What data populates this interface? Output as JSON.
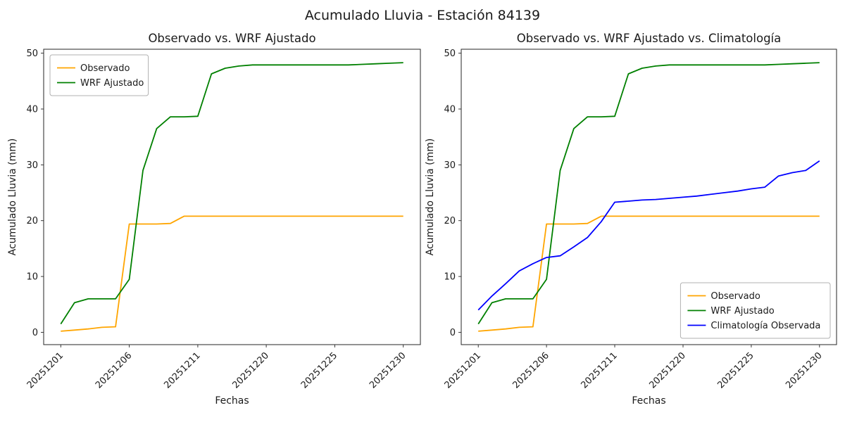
{
  "figure_title": "Acumulado Lluvia - Estación 84139",
  "chart_data": [
    {
      "type": "line",
      "title": "Observado vs. WRF Ajustado",
      "xlabel": "Fechas",
      "ylabel": "Acumulado Lluvia (mm)",
      "ylim": [
        0,
        50
      ],
      "yticks": [
        0,
        10,
        20,
        30,
        40,
        50
      ],
      "xtick_labels": [
        "20251201",
        "20251206",
        "20251211",
        "20251220",
        "20251225",
        "20251230"
      ],
      "xtick_indices": [
        0,
        5,
        10,
        15,
        20,
        25
      ],
      "n_points": 26,
      "grid": false,
      "legend_position": "upper-left",
      "series": [
        {
          "name": "Observado",
          "color": "#FFA500",
          "values": [
            0.2,
            0.4,
            0.6,
            0.9,
            1.0,
            19.4,
            19.4,
            19.4,
            19.5,
            20.8,
            20.8,
            20.8,
            20.8,
            20.8,
            20.8,
            20.8,
            20.8,
            20.8,
            20.8,
            20.8,
            20.8,
            20.8,
            20.8,
            20.8,
            20.8,
            20.8
          ]
        },
        {
          "name": "WRF Ajustado",
          "color": "#008000",
          "values": [
            1.5,
            5.3,
            6.0,
            6.0,
            6.0,
            9.5,
            29.0,
            36.5,
            38.6,
            38.6,
            38.7,
            46.3,
            47.3,
            47.7,
            47.9,
            47.9,
            47.9,
            47.9,
            47.9,
            47.9,
            47.9,
            47.9,
            48.0,
            48.1,
            48.2,
            48.3
          ]
        }
      ]
    },
    {
      "type": "line",
      "title": "Observado vs. WRF Ajustado vs. Climatología",
      "xlabel": "Fechas",
      "ylabel": "Acumulado Lluvia (mm)",
      "ylim": [
        0,
        50
      ],
      "yticks": [
        0,
        10,
        20,
        30,
        40,
        50
      ],
      "xtick_labels": [
        "20251201",
        "20251206",
        "20251211",
        "20251220",
        "20251225",
        "20251230"
      ],
      "xtick_indices": [
        0,
        5,
        10,
        15,
        20,
        25
      ],
      "n_points": 26,
      "grid": false,
      "legend_position": "lower-right",
      "series": [
        {
          "name": "Observado",
          "color": "#FFA500",
          "values": [
            0.2,
            0.4,
            0.6,
            0.9,
            1.0,
            19.4,
            19.4,
            19.4,
            19.5,
            20.8,
            20.8,
            20.8,
            20.8,
            20.8,
            20.8,
            20.8,
            20.8,
            20.8,
            20.8,
            20.8,
            20.8,
            20.8,
            20.8,
            20.8,
            20.8,
            20.8
          ]
        },
        {
          "name": "WRF Ajustado",
          "color": "#008000",
          "values": [
            1.5,
            5.3,
            6.0,
            6.0,
            6.0,
            9.5,
            29.0,
            36.5,
            38.6,
            38.6,
            38.7,
            46.3,
            47.3,
            47.7,
            47.9,
            47.9,
            47.9,
            47.9,
            47.9,
            47.9,
            47.9,
            47.9,
            48.0,
            48.1,
            48.2,
            48.3
          ]
        },
        {
          "name": "Climatología Observada",
          "color": "#0000FF",
          "values": [
            4.0,
            6.5,
            8.7,
            11.0,
            12.3,
            13.4,
            13.7,
            15.3,
            17.0,
            19.8,
            23.3,
            23.5,
            23.7,
            23.8,
            24.0,
            24.2,
            24.4,
            24.7,
            25.0,
            25.3,
            25.7,
            26.0,
            28.0,
            28.6,
            29.0,
            30.7
          ]
        }
      ]
    }
  ]
}
